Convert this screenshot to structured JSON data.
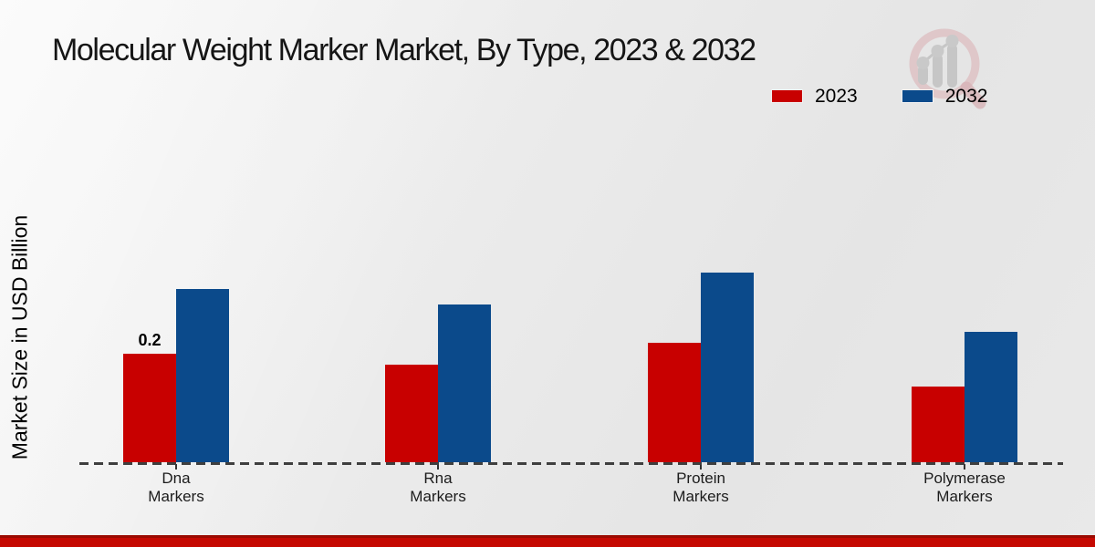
{
  "header": {
    "title": "Molecular Weight Marker Market, By Type, 2023 & 2032"
  },
  "chart": {
    "ylabel": "Market Size in USD Billion"
  },
  "chart_data": {
    "type": "bar",
    "title": "Molecular Weight Marker Market, By Type, 2023 & 2032",
    "xlabel": "",
    "ylabel": "Market Size in USD Billion",
    "categories": [
      "Dna Markers",
      "Rna Markers",
      "Protein Markers",
      "Polymerase Markers"
    ],
    "series": [
      {
        "name": "2023",
        "color": "#c80000",
        "values": [
          0.2,
          0.18,
          0.22,
          0.14
        ]
      },
      {
        "name": "2032",
        "color": "#0b4a8b",
        "values": [
          0.32,
          0.29,
          0.35,
          0.24
        ]
      }
    ],
    "annotations": [
      {
        "series": "2023",
        "category": "Dna Markers",
        "text": "0.2"
      }
    ],
    "ylim": [
      0,
      0.4
    ],
    "grid": false,
    "legend_position": "top-right",
    "baseline_style": "dashed",
    "units": "USD Billion"
  },
  "colors": {
    "accent_red": "#c80000",
    "accent_blue": "#0b4a8b",
    "footer_bar": "#c50801",
    "logo_pink": "#dcbcbf",
    "logo_gray": "#c6c6c6"
  },
  "logo": {
    "name": "market-research-magnifier-logo"
  }
}
